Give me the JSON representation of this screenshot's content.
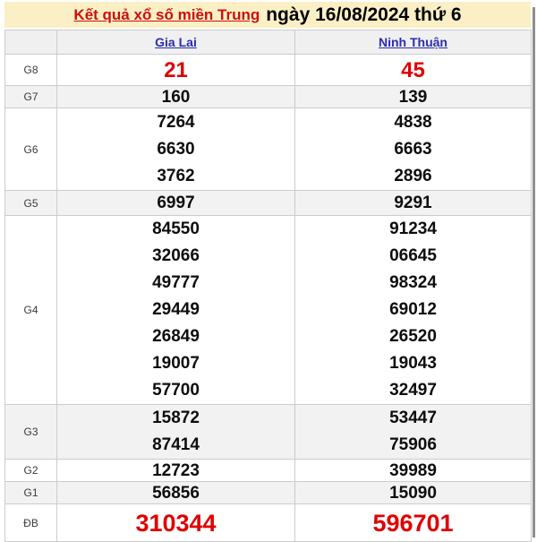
{
  "banner": {
    "title_link": "Kết quả xổ số miền Trung",
    "title_date": "ngày 16/08/2024 thứ 6"
  },
  "table": {
    "columns": [
      {
        "key": "gia_lai",
        "label": "Gia Lai"
      },
      {
        "key": "ninh_thuan",
        "label": "Ninh Thuận"
      }
    ],
    "rows": [
      {
        "key": "g8",
        "label": "G8",
        "gia_lai": [
          "21"
        ],
        "ninh_thuan": [
          "45"
        ]
      },
      {
        "key": "g7",
        "label": "G7",
        "gia_lai": [
          "160"
        ],
        "ninh_thuan": [
          "139"
        ]
      },
      {
        "key": "g6",
        "label": "G6",
        "gia_lai": [
          "7264",
          "6630",
          "3762"
        ],
        "ninh_thuan": [
          "4838",
          "6663",
          "2896"
        ]
      },
      {
        "key": "g5",
        "label": "G5",
        "gia_lai": [
          "6997"
        ],
        "ninh_thuan": [
          "9291"
        ]
      },
      {
        "key": "g4",
        "label": "G4",
        "gia_lai": [
          "84550",
          "32066",
          "49777",
          "29449",
          "26849",
          "19007",
          "57700"
        ],
        "ninh_thuan": [
          "91234",
          "06645",
          "98324",
          "69012",
          "26520",
          "19043",
          "32497"
        ]
      },
      {
        "key": "g3",
        "label": "G3",
        "gia_lai": [
          "15872",
          "87414"
        ],
        "ninh_thuan": [
          "53447",
          "75906"
        ]
      },
      {
        "key": "g2",
        "label": "G2",
        "gia_lai": [
          "12723"
        ],
        "ninh_thuan": [
          "39989"
        ]
      },
      {
        "key": "g1",
        "label": "G1",
        "gia_lai": [
          "56856"
        ],
        "ninh_thuan": [
          "15090"
        ]
      },
      {
        "key": "db",
        "label": "ĐB",
        "gia_lai": [
          "310344"
        ],
        "ninh_thuan": [
          "596701"
        ]
      }
    ]
  },
  "colors": {
    "banner_bg": "#FBF0C5",
    "title_link_red": "#CF0D0D",
    "prize_red": "#E00000",
    "column_link_blue": "#2B2BB0",
    "alt_row_bg": "#F2F2F2",
    "header_row_bg": "#F0F0F0",
    "border": "#CCCCCC",
    "scrollbar": "#8F8F8F"
  }
}
